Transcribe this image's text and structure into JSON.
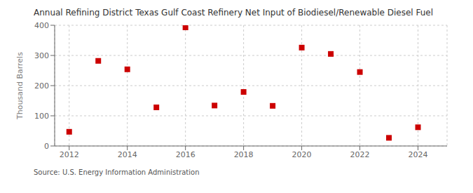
{
  "chart_data": {
    "type": "scatter",
    "title": "Annual Refining District Texas Gulf Coast Refinery Net Input of Biodiesel/Renewable Diesel Fuel",
    "ylabel": "Thousand Barrels",
    "source": "Source: U.S. Energy Information Administration",
    "x": [
      2012,
      2013,
      2014,
      2015,
      2016,
      2017,
      2018,
      2019,
      2020,
      2021,
      2022,
      2023,
      2024
    ],
    "values": [
      47,
      282,
      254,
      128,
      393,
      134,
      179,
      133,
      326,
      305,
      245,
      27,
      62
    ],
    "color": "#cc0000",
    "marker": "square",
    "xlim": [
      2011.5,
      2025.0
    ],
    "xticks": [
      2012,
      2014,
      2016,
      2018,
      2020,
      2022,
      2024
    ],
    "ylim": [
      0,
      400
    ],
    "yticks": [
      0,
      100,
      200,
      300,
      400
    ],
    "grid": true
  }
}
